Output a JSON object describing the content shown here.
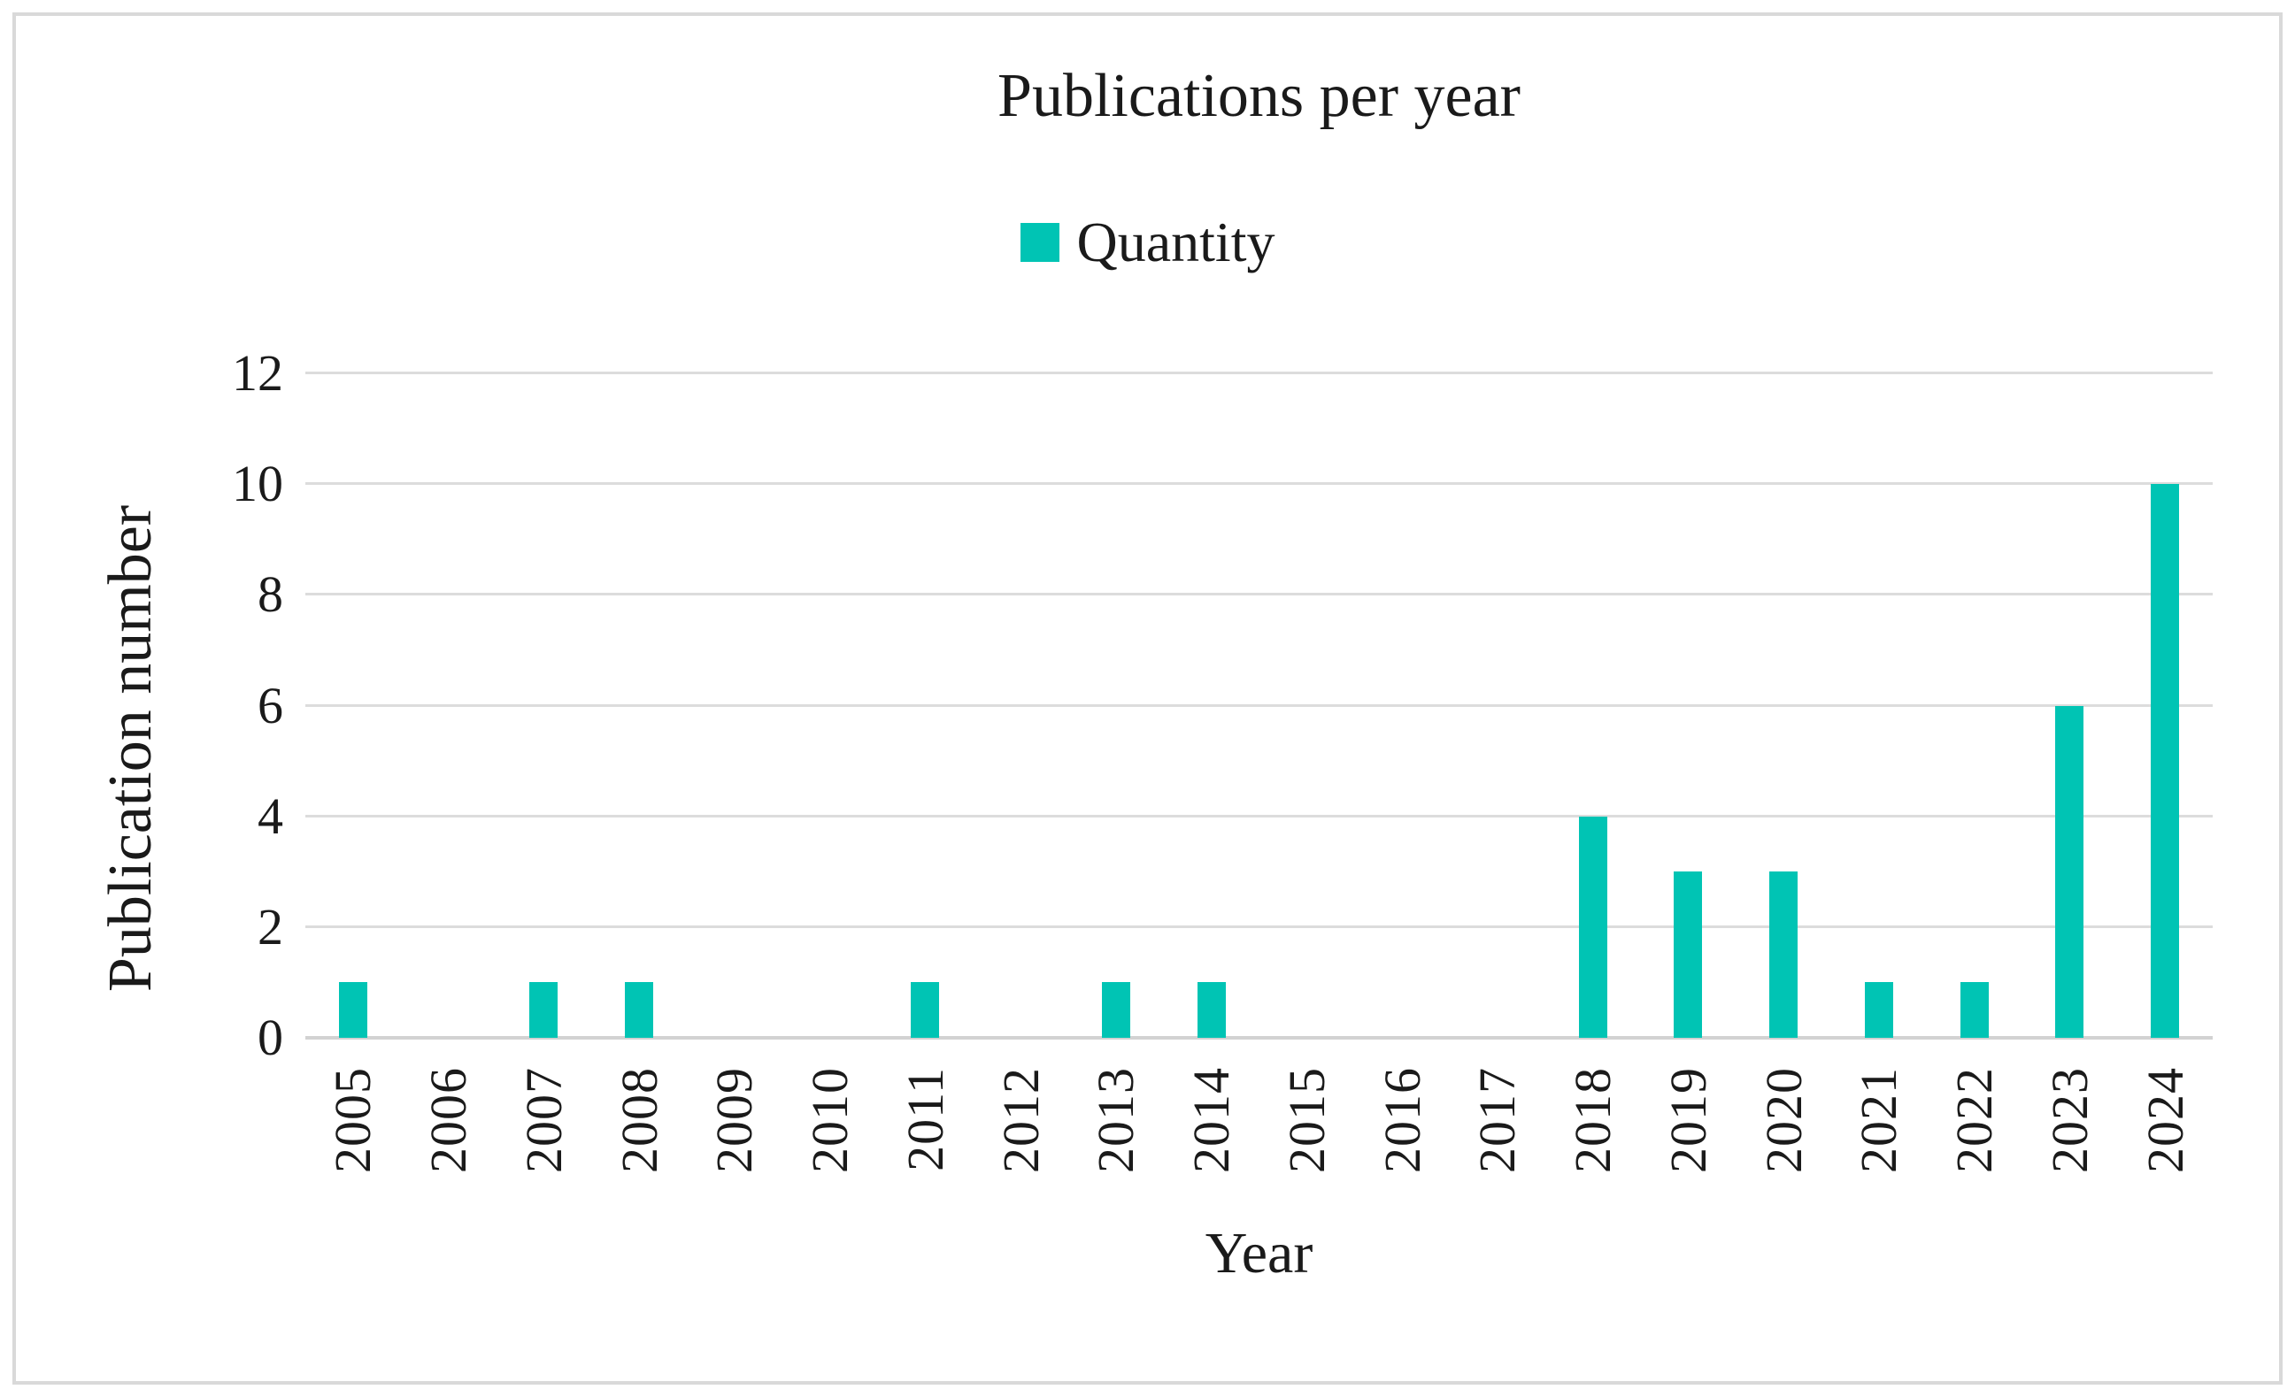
{
  "figure": {
    "border_color": "#D9D9D9",
    "background_color": "#FFFFFF",
    "text_color": "#1A1A1A"
  },
  "chart_data": {
    "type": "bar",
    "title": "Publications per year",
    "legend": {
      "label": "Quantity",
      "position": "top",
      "swatch_color": "#00C4B4"
    },
    "categories": [
      "2005",
      "2006",
      "2007",
      "2008",
      "2009",
      "2010",
      "2011",
      "2012",
      "2013",
      "2014",
      "2015",
      "2016",
      "2017",
      "2018",
      "2019",
      "2020",
      "2021",
      "2022",
      "2023",
      "2024"
    ],
    "series": [
      {
        "name": "Quantity",
        "values": [
          1,
          0,
          1,
          1,
          0,
          0,
          1,
          0,
          1,
          1,
          0,
          0,
          0,
          4,
          3,
          3,
          1,
          1,
          6,
          10
        ]
      }
    ],
    "xlabel": "Year",
    "ylabel": "Publication number",
    "ylim": [
      0,
      12
    ],
    "yticks": [
      0,
      2,
      4,
      6,
      8,
      10,
      12
    ],
    "grid": true,
    "bar_color": "#00C4B4",
    "gridline_color": "#DCDCDC",
    "axis_line_color": "#D2D2D2"
  }
}
